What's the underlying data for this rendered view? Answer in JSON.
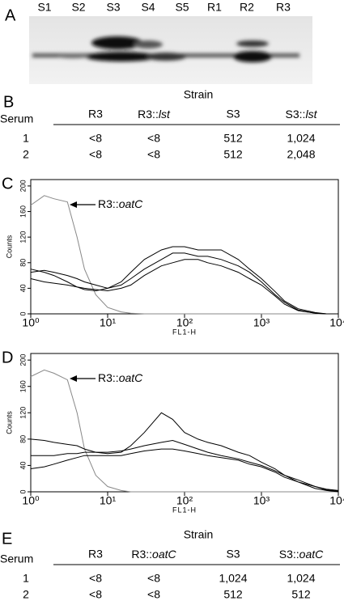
{
  "panel_labels": [
    "A",
    "B",
    "C",
    "D",
    "E"
  ],
  "panel_a": {
    "lanes": [
      "S1",
      "S2",
      "S3",
      "S4",
      "S5",
      "R1",
      "R2",
      "R3"
    ]
  },
  "panel_b": {
    "column_title": "Strain",
    "row_title": "Serum",
    "columns": [
      "R3",
      {
        "text": "R3::",
        "italic": "lst"
      },
      "S3",
      {
        "text": "S3::",
        "italic": "lst"
      }
    ],
    "rows": [
      [
        "1",
        "<8",
        "<8",
        "512",
        "1,024"
      ],
      [
        "2",
        "<8",
        "<8",
        "512",
        "2,048"
      ]
    ]
  },
  "chart_data": [
    {
      "type": "line",
      "ylabel": "Counts",
      "xlabel": "FL1-H",
      "annotation": {
        "text": "R3::",
        "italic": "oatC"
      },
      "log_x": true,
      "xlim": [
        1,
        10000
      ],
      "xticks": [
        {
          "value": 1,
          "label": "10⁰"
        },
        {
          "value": 10,
          "label": "10¹"
        },
        {
          "value": 100,
          "label": "10²"
        },
        {
          "value": 1000,
          "label": "10³"
        },
        {
          "value": 10000,
          "label": "10⁴"
        }
      ],
      "ylim": [
        0,
        210
      ],
      "yticks": [
        0,
        40,
        80,
        120,
        160,
        200
      ],
      "x": [
        1,
        1.5,
        2,
        3,
        4,
        5,
        7,
        10,
        15,
        20,
        30,
        50,
        70,
        100,
        150,
        200,
        300,
        500,
        700,
        1000,
        1500,
        2000,
        3000,
        5000,
        7000,
        10000
      ],
      "series": [
        {
          "color": "#888888",
          "values": [
            170,
            185,
            180,
            175,
            120,
            70,
            30,
            10,
            3,
            1,
            0,
            0,
            0,
            0,
            0,
            0,
            0,
            0,
            0,
            0,
            0,
            0,
            0,
            0,
            0,
            0
          ]
        },
        {
          "color": "#000000",
          "values": [
            70,
            65,
            60,
            50,
            42,
            38,
            36,
            40,
            50,
            65,
            85,
            100,
            105,
            105,
            100,
            100,
            100,
            85,
            70,
            55,
            35,
            20,
            8,
            2,
            0,
            0
          ]
        },
        {
          "color": "#000000",
          "values": [
            65,
            68,
            65,
            60,
            55,
            50,
            45,
            40,
            45,
            55,
            70,
            85,
            95,
            95,
            90,
            90,
            85,
            75,
            65,
            50,
            30,
            18,
            6,
            1,
            0,
            0
          ]
        },
        {
          "color": "#000000",
          "values": [
            55,
            50,
            48,
            45,
            42,
            40,
            38,
            36,
            40,
            45,
            60,
            75,
            80,
            85,
            85,
            80,
            75,
            65,
            55,
            45,
            28,
            15,
            5,
            1,
            0,
            0
          ]
        }
      ]
    },
    {
      "type": "line",
      "ylabel": "Counts",
      "xlabel": "FL1-H",
      "annotation": {
        "text": "R3::",
        "italic": "oatC"
      },
      "log_x": true,
      "xlim": [
        1,
        10000
      ],
      "xticks": [
        {
          "value": 1,
          "label": "10⁰"
        },
        {
          "value": 10,
          "label": "10¹"
        },
        {
          "value": 100,
          "label": "10²"
        },
        {
          "value": 1000,
          "label": "10³"
        },
        {
          "value": 10000,
          "label": "10⁴"
        }
      ],
      "ylim": [
        0,
        210
      ],
      "yticks": [
        0,
        40,
        80,
        120,
        160,
        200
      ],
      "x": [
        1,
        1.5,
        2,
        3,
        4,
        5,
        7,
        10,
        15,
        20,
        30,
        50,
        70,
        100,
        150,
        200,
        300,
        500,
        700,
        1000,
        1500,
        2000,
        3000,
        5000,
        7000,
        10000
      ],
      "series": [
        {
          "color": "#888888",
          "values": [
            175,
            185,
            180,
            170,
            120,
            65,
            25,
            8,
            2,
            0,
            0,
            0,
            0,
            0,
            0,
            0,
            0,
            0,
            0,
            0,
            0,
            0,
            0,
            0,
            0,
            0
          ]
        },
        {
          "color": "#000000",
          "values": [
            80,
            78,
            75,
            72,
            70,
            65,
            60,
            58,
            60,
            70,
            90,
            120,
            110,
            90,
            80,
            75,
            70,
            60,
            55,
            45,
            35,
            25,
            15,
            5,
            2,
            0
          ]
        },
        {
          "color": "#000000",
          "values": [
            55,
            55,
            55,
            58,
            58,
            60,
            60,
            60,
            62,
            65,
            70,
            75,
            78,
            72,
            65,
            60,
            55,
            50,
            45,
            40,
            32,
            25,
            18,
            8,
            4,
            2
          ]
        },
        {
          "color": "#000000",
          "values": [
            35,
            38,
            42,
            48,
            52,
            55,
            55,
            55,
            55,
            58,
            62,
            65,
            65,
            62,
            58,
            55,
            52,
            48,
            42,
            38,
            30,
            22,
            15,
            8,
            3,
            1
          ]
        }
      ]
    }
  ],
  "panel_e": {
    "column_title": "Strain",
    "row_title": "Serum",
    "columns": [
      "R3",
      {
        "text": "R3::",
        "italic": "oatC"
      },
      "S3",
      {
        "text": "S3::",
        "italic": "oatC"
      }
    ],
    "rows": [
      [
        "1",
        "<8",
        "<8",
        "1,024",
        "1,024"
      ],
      [
        "2",
        "<8",
        "<8",
        "512",
        "512"
      ]
    ]
  }
}
